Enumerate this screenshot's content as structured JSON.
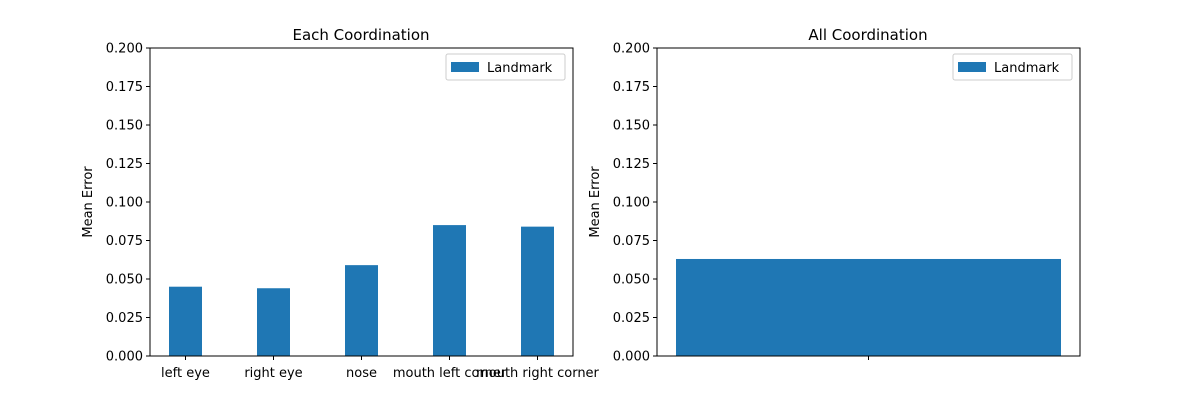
{
  "chart_data": [
    {
      "type": "bar",
      "title": "Each Coordination",
      "xlabel": "",
      "ylabel": "Mean Error",
      "categories": [
        "left eye",
        "right eye",
        "nose",
        "mouth left corner",
        "mouth right corner"
      ],
      "series": [
        {
          "name": "Landmark",
          "color": "#1f77b4",
          "values": [
            0.045,
            0.044,
            0.059,
            0.085,
            0.084
          ]
        }
      ],
      "ylim": [
        0,
        0.2
      ],
      "yticks": [
        "0.000",
        "0.025",
        "0.050",
        "0.075",
        "0.100",
        "0.125",
        "0.150",
        "0.175",
        "0.200"
      ],
      "legend": "top-right",
      "grid": false
    },
    {
      "type": "bar",
      "title": "All Coordination",
      "xlabel": "",
      "ylabel": "Mean Error",
      "categories": [
        ""
      ],
      "series": [
        {
          "name": "Landmark",
          "color": "#1f77b4",
          "values": [
            0.063
          ]
        }
      ],
      "ylim": [
        0,
        0.2
      ],
      "yticks": [
        "0.000",
        "0.025",
        "0.050",
        "0.075",
        "0.100",
        "0.125",
        "0.150",
        "0.175",
        "0.200"
      ],
      "legend": "top-right",
      "grid": false
    }
  ]
}
